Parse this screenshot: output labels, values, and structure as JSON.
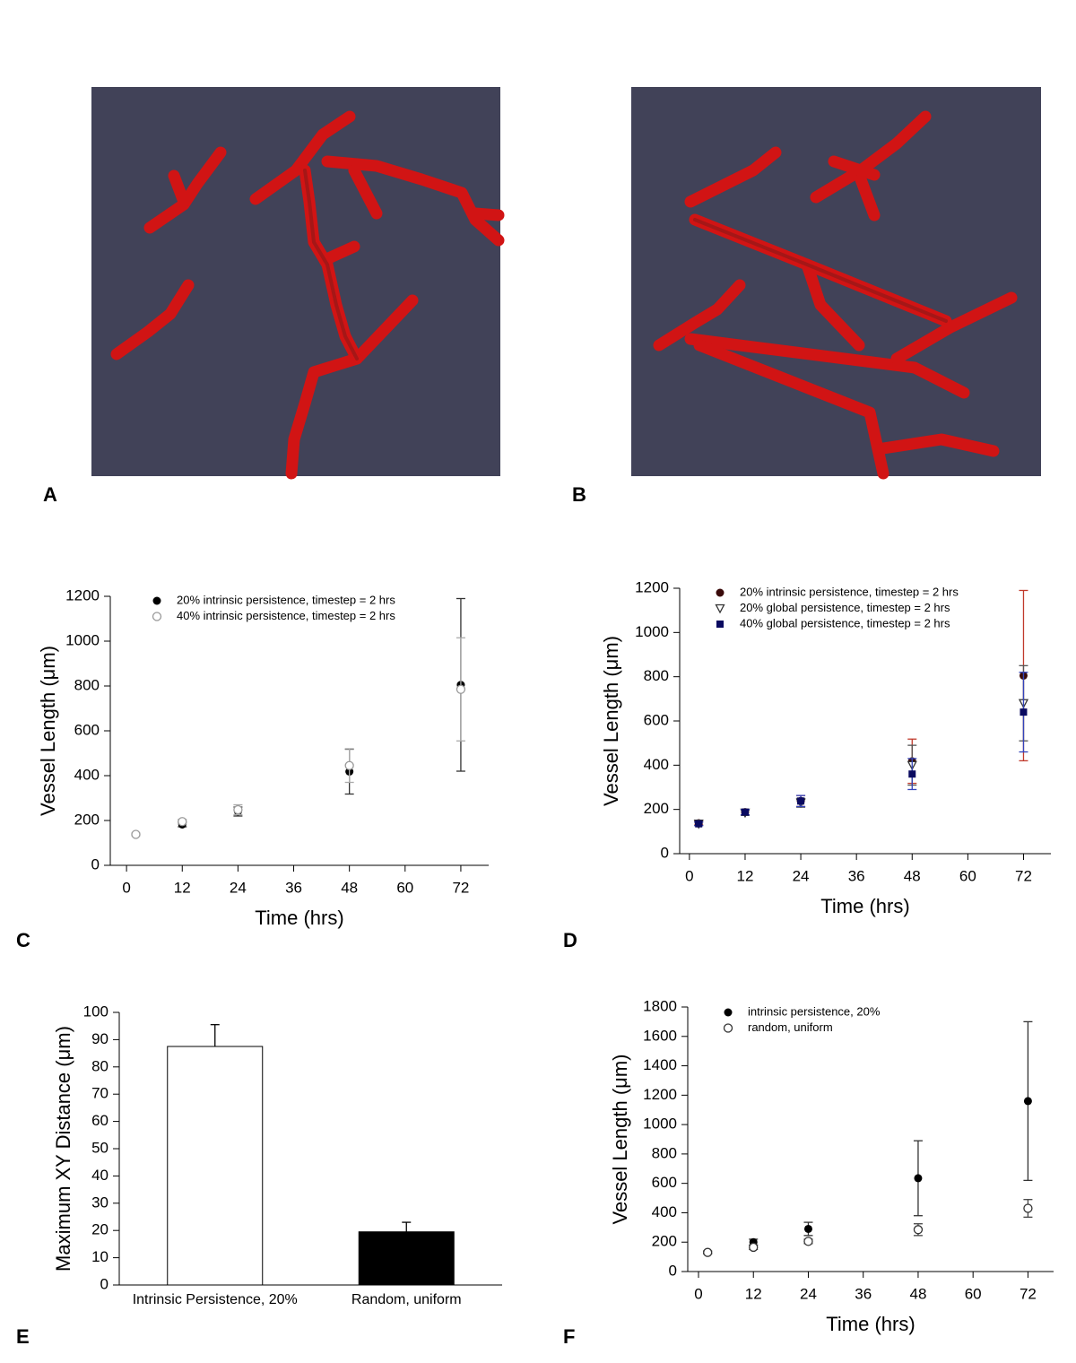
{
  "images": [
    {
      "panel": "A"
    },
    {
      "panel": "B"
    }
  ],
  "chart_data": [
    {
      "type": "scatter",
      "panel": "C",
      "xlabel": "Time (hrs)",
      "ylabel": "Vessel Length (μm)",
      "xlim": [
        -3.5,
        78
      ],
      "xticks": [
        0,
        12,
        24,
        36,
        48,
        60,
        72
      ],
      "ylim": [
        0,
        1200
      ],
      "yticks": [
        0,
        200,
        400,
        600,
        800,
        1000,
        1200
      ],
      "series": [
        {
          "name": "20% intrinsic persistence, timestep = 2 hrs",
          "color": "#000000",
          "error_color": "#333333",
          "marker": "circle",
          "x": [
            2,
            12,
            24,
            48,
            72
          ],
          "values": [
            138,
            182,
            240,
            418,
            805
          ],
          "errors": [
            5,
            10,
            20,
            100,
            385
          ]
        },
        {
          "name": "40% intrinsic persistence, timestep = 2 hrs",
          "color": "#999999",
          "error_color": "#aaaaaa",
          "marker": "open-circle",
          "x": [
            2,
            12,
            24,
            48,
            72
          ],
          "values": [
            138,
            195,
            248,
            445,
            785
          ],
          "errors": [
            5,
            10,
            22,
            75,
            230
          ]
        }
      ]
    },
    {
      "type": "scatter",
      "panel": "D",
      "xlabel": "Time (hrs)",
      "ylabel": "Vessel Length (μm)",
      "xlim": [
        -2.1,
        77.9
      ],
      "xticks": [
        0,
        12,
        24,
        36,
        48,
        60,
        72
      ],
      "ylim": [
        0,
        1200
      ],
      "yticks": [
        0,
        200,
        400,
        600,
        800,
        1000,
        1200
      ],
      "series": [
        {
          "name": "20% intrinsic persistence, timestep = 2 hrs",
          "color": "#3a0a0a",
          "error_color": "#c0392b",
          "marker": "circle",
          "x": [
            2,
            12,
            24,
            48,
            72
          ],
          "values": [
            138,
            188,
            238,
            418,
            805
          ],
          "errors": [
            8,
            12,
            25,
            100,
            385
          ]
        },
        {
          "name": "20% global persistence, timestep = 2 hrs",
          "color": "#333333",
          "error_color": "#555555",
          "marker": "open-triangle",
          "x": [
            2,
            12,
            24,
            48,
            72
          ],
          "values": [
            135,
            185,
            230,
            400,
            680
          ],
          "errors": [
            8,
            12,
            20,
            90,
            170
          ]
        },
        {
          "name": "40% global persistence, timestep = 2 hrs",
          "color": "#0a0a60",
          "error_color": "#3344bb",
          "marker": "square",
          "x": [
            2,
            12,
            24,
            48,
            72
          ],
          "values": [
            135,
            188,
            238,
            360,
            640
          ],
          "errors": [
            8,
            12,
            25,
            70,
            180
          ]
        }
      ]
    },
    {
      "type": "bar",
      "panel": "E",
      "ylabel": "Maximum XY Distance (μm)",
      "categories": [
        "Intrinsic Persistence, 20%",
        "Random, uniform"
      ],
      "values": [
        87.5,
        19.5
      ],
      "errors": [
        8,
        3.5
      ],
      "colors": [
        "#ffffff",
        "#000000"
      ],
      "ylim": [
        0,
        100
      ],
      "yticks": [
        0,
        10,
        20,
        30,
        40,
        50,
        60,
        70,
        80,
        90,
        100
      ]
    },
    {
      "type": "scatter",
      "panel": "F",
      "xlabel": "Time (hrs)",
      "ylabel": "Vessel Length (μm)",
      "xlim": [
        -2.35,
        77.6
      ],
      "xticks": [
        0,
        12,
        24,
        36,
        48,
        60,
        72
      ],
      "ylim": [
        0,
        1800
      ],
      "yticks": [
        0,
        200,
        400,
        600,
        800,
        1000,
        1200,
        1400,
        1600,
        1800
      ],
      "series": [
        {
          "name": "intrinsic persistence, 20%",
          "color": "#000000",
          "error_color": "#333333",
          "marker": "circle",
          "x": [
            2,
            12,
            24,
            48,
            72
          ],
          "values": [
            130,
            200,
            290,
            635,
            1160
          ],
          "errors": [
            10,
            20,
            45,
            255,
            540
          ]
        },
        {
          "name": "random, uniform",
          "color": "#333333",
          "error_color": "#444444",
          "marker": "open-circle",
          "x": [
            2,
            12,
            24,
            48,
            72
          ],
          "values": [
            130,
            165,
            205,
            285,
            430
          ],
          "errors": [
            8,
            15,
            15,
            40,
            60
          ]
        }
      ]
    }
  ]
}
